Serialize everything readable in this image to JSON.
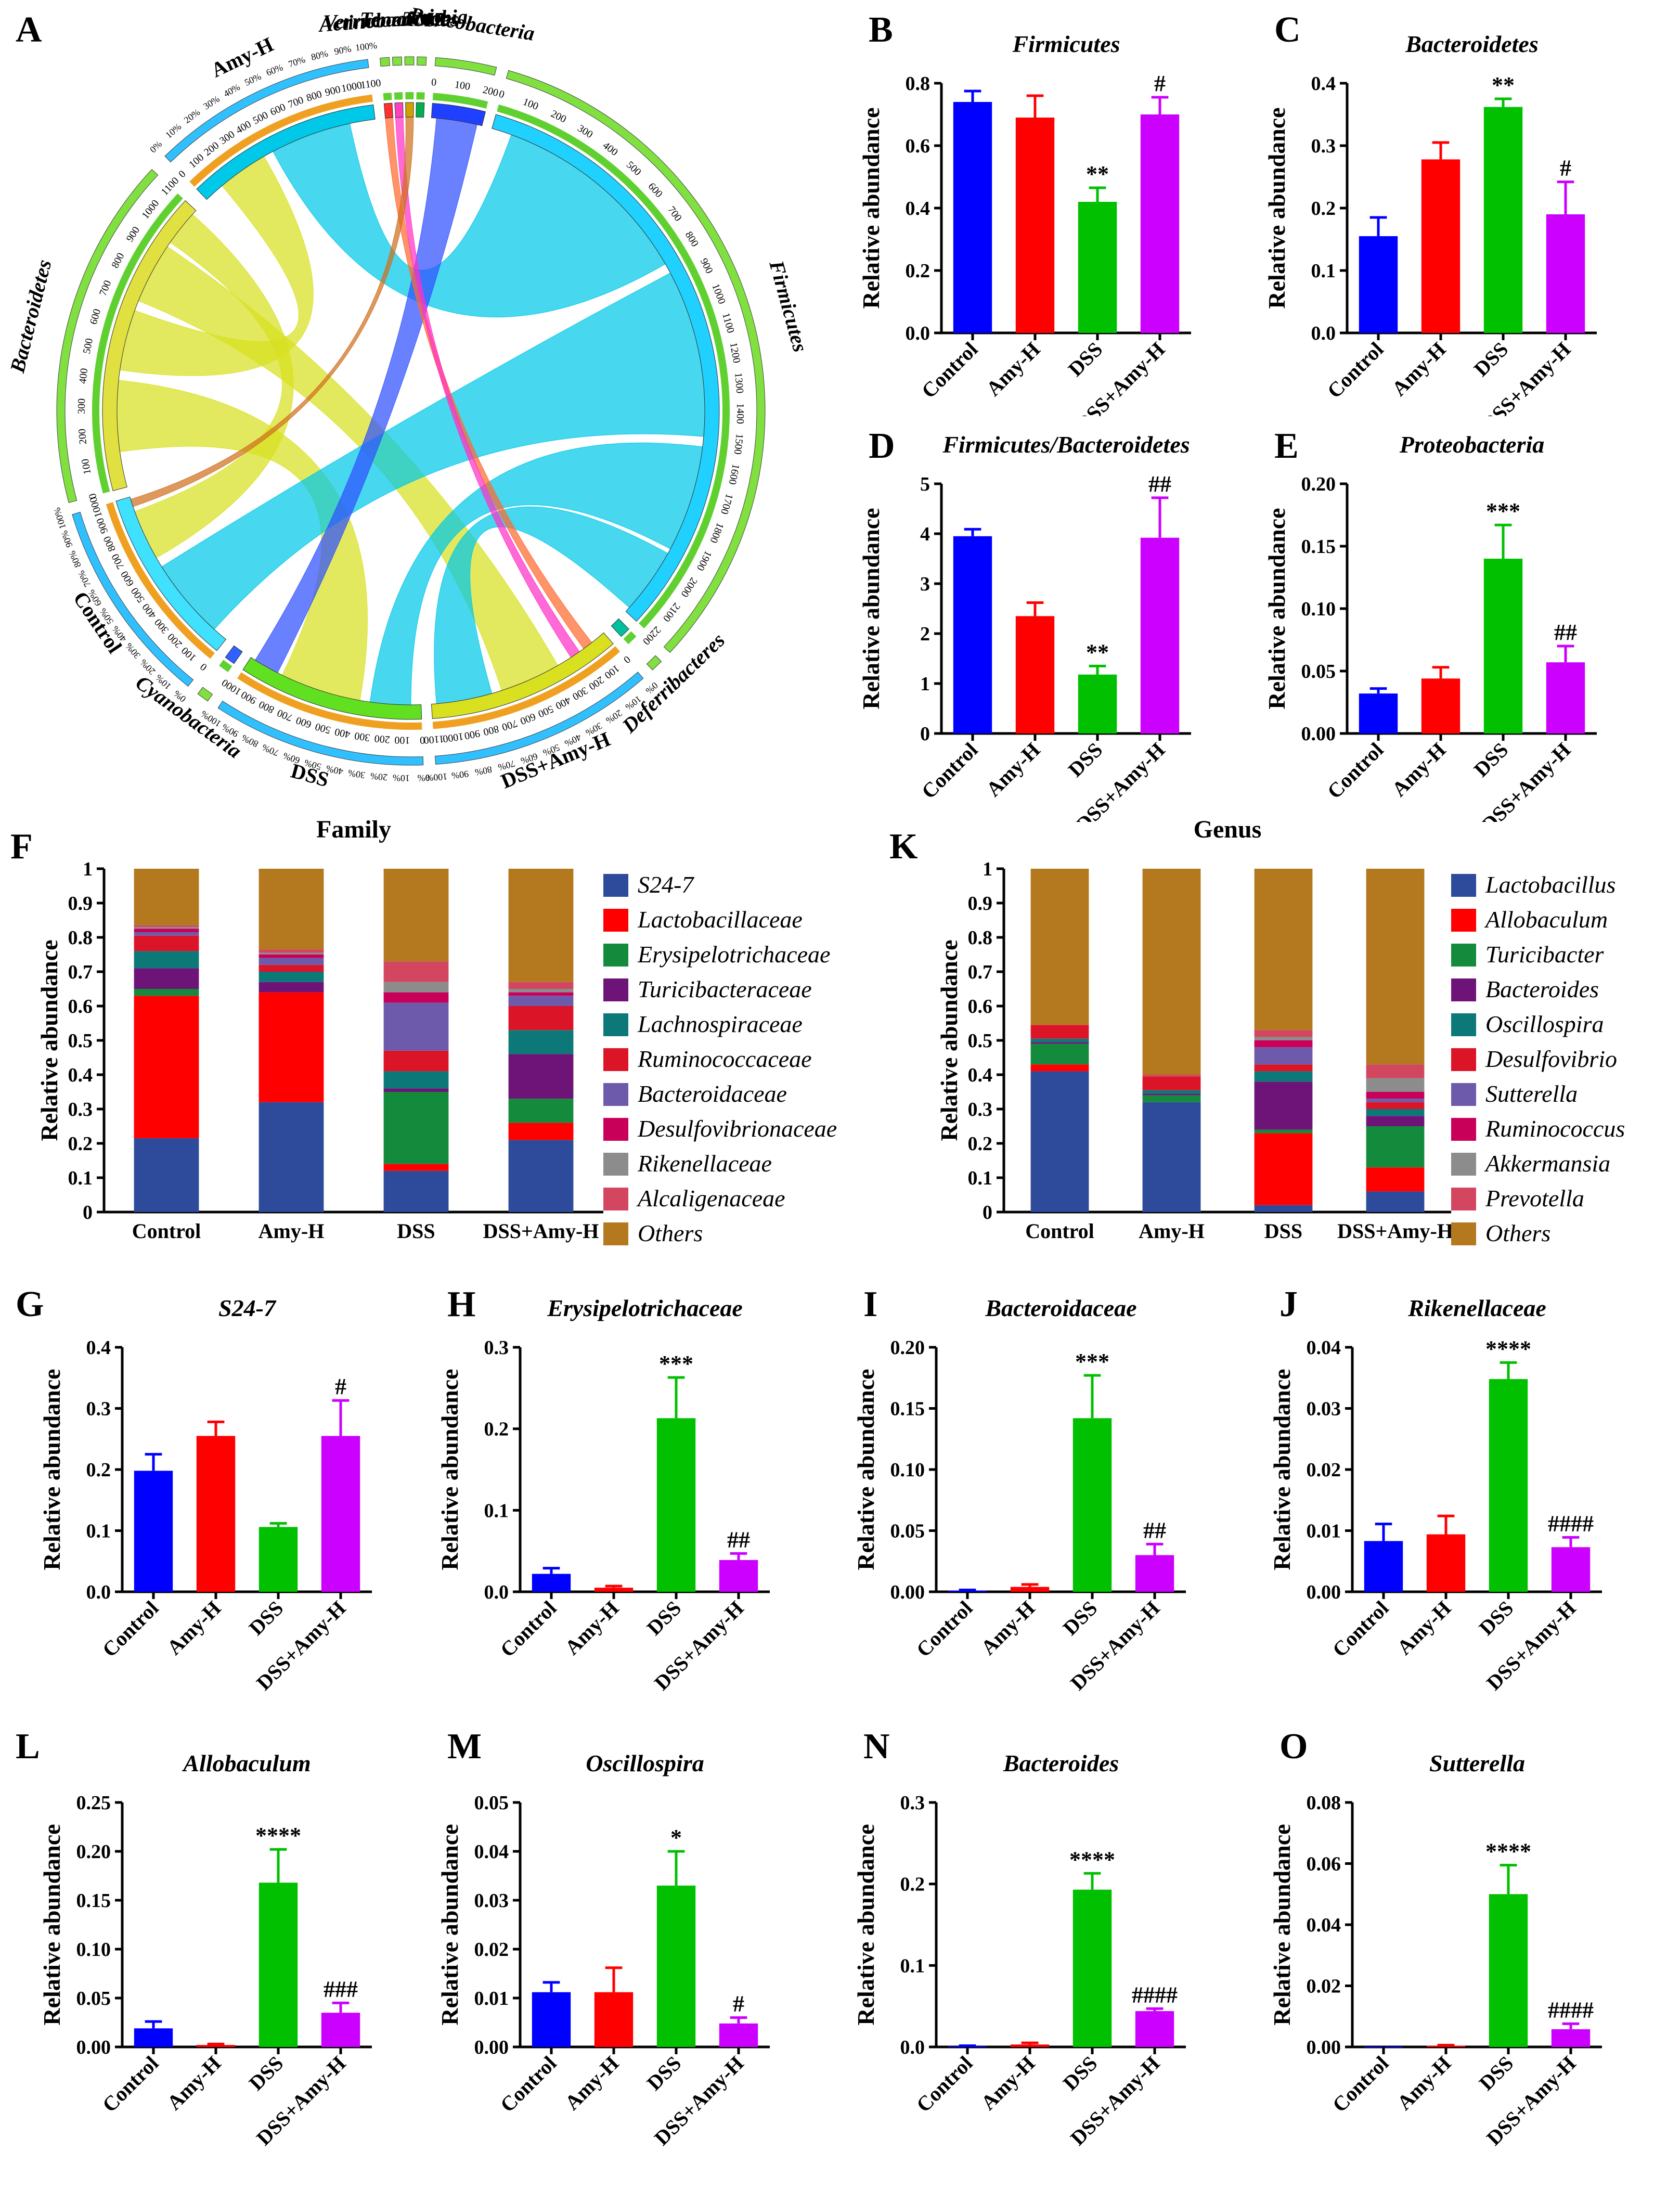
{
  "colors": {
    "Control": "#0000ff",
    "Amy-H": "#ff0000",
    "DSS": "#00c000",
    "DSS+Amy-H": "#cc00ff"
  },
  "groups": [
    "Control",
    "Amy-H",
    "DSS",
    "DSS+Amy-H"
  ],
  "ylabel": "Relative abundance",
  "chart_data": [
    {
      "id": "A",
      "type": "chord",
      "label": "A",
      "sectors": [
        {
          "name": "Amy-H",
          "kind": "sample",
          "color": "#00c8e8",
          "scale": [
            "0",
            "100",
            "200",
            "300",
            "400",
            "500",
            "600",
            "700",
            "800",
            "900",
            "1000",
            "1100"
          ]
        },
        {
          "name": "Actinobacteria",
          "kind": "taxon",
          "color": "#ff3030"
        },
        {
          "name": "Verrucomicrobia",
          "kind": "taxon",
          "color": "#ff40c0"
        },
        {
          "name": "Tenericutes",
          "kind": "taxon",
          "color": "#d0a000"
        },
        {
          "name": "TM7",
          "kind": "taxon",
          "color": "#00b050"
        },
        {
          "name": "Proteobacteria",
          "kind": "taxon",
          "color": "#2040ff",
          "scale": [
            "0",
            "100",
            "200"
          ]
        },
        {
          "name": "Firmicutes",
          "kind": "taxon",
          "color": "#20d0ff",
          "scale": [
            "0",
            "100",
            "200",
            "300",
            "400",
            "500",
            "600",
            "700",
            "800",
            "900",
            "1000",
            "1100",
            "1200",
            "1300",
            "1400",
            "1500",
            "1600",
            "1700",
            "1800",
            "1900",
            "2000",
            "2100",
            "2200"
          ]
        },
        {
          "name": "Deferribacteres",
          "kind": "taxon",
          "color": "#00c0a0"
        },
        {
          "name": "DSS+Amy-H",
          "kind": "sample",
          "color": "#d8e020",
          "scale": [
            "0",
            "100",
            "200",
            "300",
            "400",
            "500",
            "600",
            "700",
            "800",
            "900",
            "1000",
            "1100"
          ]
        },
        {
          "name": "DSS",
          "kind": "sample",
          "color": "#60e020",
          "scale": [
            "0",
            "100",
            "200",
            "300",
            "400",
            "500",
            "600",
            "700",
            "800",
            "900",
            "1000"
          ]
        },
        {
          "name": "Cyanobacteria",
          "kind": "taxon",
          "color": "#3060ff"
        },
        {
          "name": "Control",
          "kind": "sample",
          "color": "#40e0ff",
          "scale": [
            "0",
            "100",
            "200",
            "300",
            "400",
            "500",
            "600",
            "700",
            "800",
            "900",
            "1000"
          ]
        },
        {
          "name": "Bacteroidetes",
          "kind": "taxon",
          "color": "#e0e040",
          "scale": [
            "0",
            "100",
            "200",
            "300",
            "400",
            "500",
            "600",
            "700",
            "800",
            "900",
            "1000",
            "1100"
          ]
        }
      ],
      "percent_ticks": [
        "0%",
        "10%",
        "20%",
        "30%",
        "40%",
        "50%",
        "60%",
        "70%",
        "80%",
        "90%",
        "100%"
      ]
    },
    {
      "id": "B",
      "type": "bar",
      "label": "B",
      "title": "Firmicutes",
      "italic": true,
      "ylabel": "Relative abundance",
      "ylim": [
        0,
        0.8
      ],
      "yticks": [
        "0.0",
        "0.2",
        "0.4",
        "0.6",
        "0.8"
      ],
      "tickvals": [
        0,
        0.2,
        0.4,
        0.6,
        0.8
      ],
      "categories": [
        "Control",
        "Amy-H",
        "DSS",
        "DSS+Amy-H"
      ],
      "values": [
        0.74,
        0.69,
        0.42,
        0.7
      ],
      "errors": [
        0.035,
        0.07,
        0.045,
        0.055
      ],
      "annotations": [
        "",
        "",
        "**",
        "#"
      ]
    },
    {
      "id": "C",
      "type": "bar",
      "label": "C",
      "title": "Bacteroidetes",
      "italic": true,
      "ylabel": "Relative abundance",
      "ylim": [
        0,
        0.4
      ],
      "yticks": [
        "0.0",
        "0.1",
        "0.2",
        "0.3",
        "0.4"
      ],
      "tickvals": [
        0,
        0.1,
        0.2,
        0.3,
        0.4
      ],
      "categories": [
        "Control",
        "Amy-H",
        "DSS",
        "DSS+Amy-H"
      ],
      "values": [
        0.155,
        0.278,
        0.362,
        0.19
      ],
      "errors": [
        0.03,
        0.027,
        0.013,
        0.052
      ],
      "annotations": [
        "",
        "",
        "**",
        "#"
      ]
    },
    {
      "id": "D",
      "type": "bar",
      "label": "D",
      "title": "Firmicutes/Bacteroidetes",
      "italic": true,
      "ylabel": "Relative abundance",
      "ylim": [
        0,
        5
      ],
      "yticks": [
        "0",
        "1",
        "2",
        "3",
        "4",
        "5"
      ],
      "tickvals": [
        0,
        1,
        2,
        3,
        4,
        5
      ],
      "categories": [
        "Control",
        "Amy-H",
        "DSS",
        "DSS+Amy-H"
      ],
      "values": [
        3.95,
        2.35,
        1.18,
        3.92
      ],
      "errors": [
        0.14,
        0.27,
        0.17,
        0.8
      ],
      "annotations": [
        "",
        "",
        "**",
        "##"
      ]
    },
    {
      "id": "E",
      "type": "bar",
      "label": "E",
      "title": "Proteobacteria",
      "italic": true,
      "ylabel": "Relative abundance",
      "ylim": [
        0,
        0.2
      ],
      "yticks": [
        "0.00",
        "0.05",
        "0.10",
        "0.15",
        "0.20"
      ],
      "tickvals": [
        0,
        0.05,
        0.1,
        0.15,
        0.2
      ],
      "categories": [
        "Control",
        "Amy-H",
        "DSS",
        "DSS+Amy-H"
      ],
      "values": [
        0.032,
        0.044,
        0.14,
        0.057
      ],
      "errors": [
        0.004,
        0.009,
        0.027,
        0.013
      ],
      "annotations": [
        "",
        "",
        "***",
        "##"
      ]
    },
    {
      "id": "F",
      "type": "stacked-bar",
      "label": "F",
      "title": "Family",
      "ylabel": "Relative abundance",
      "ylim": [
        0,
        1
      ],
      "yticks": [
        "0",
        "0.1",
        "0.2",
        "0.3",
        "0.4",
        "0.5",
        "0.6",
        "0.7",
        "0.8",
        "0.9",
        "1"
      ],
      "categories": [
        "Control",
        "Amy-H",
        "DSS",
        "DSS+Amy-H"
      ],
      "series": [
        {
          "name": "S24-7",
          "color": "#2e4a9a",
          "values": [
            0.215,
            0.32,
            0.12,
            0.21
          ]
        },
        {
          "name": "Lactobacillaceae",
          "color": "#ff0000",
          "values": [
            0.415,
            0.32,
            0.02,
            0.05
          ]
        },
        {
          "name": "Erysipelotrichaceae",
          "color": "#148a3c",
          "values": [
            0.02,
            0.0,
            0.21,
            0.07
          ]
        },
        {
          "name": "Turicibacteraceae",
          "color": "#6e1478",
          "values": [
            0.06,
            0.03,
            0.01,
            0.13
          ]
        },
        {
          "name": "Lachnospiraceae",
          "color": "#0c7878",
          "values": [
            0.05,
            0.03,
            0.05,
            0.07
          ]
        },
        {
          "name": "Ruminococcaceae",
          "color": "#dc1428",
          "values": [
            0.045,
            0.02,
            0.06,
            0.07
          ]
        },
        {
          "name": "Bacteroidaceae",
          "color": "#6e5aaa",
          "values": [
            0.01,
            0.02,
            0.14,
            0.03
          ]
        },
        {
          "name": "Desulfovibrionaceae",
          "color": "#c8005a",
          "values": [
            0.01,
            0.01,
            0.03,
            0.01
          ]
        },
        {
          "name": "Rikenellaceae",
          "color": "#8c8c8c",
          "values": [
            0.005,
            0.005,
            0.03,
            0.01
          ]
        },
        {
          "name": "Alcaligenaceae",
          "color": "#d24660",
          "values": [
            0.005,
            0.01,
            0.06,
            0.02
          ]
        },
        {
          "name": "Others",
          "color": "#b4781e",
          "values": [
            0.165,
            0.235,
            0.27,
            0.33
          ]
        }
      ]
    },
    {
      "id": "K",
      "type": "stacked-bar",
      "label": "K",
      "title": "Genus",
      "ylabel": "Relative abundance",
      "ylim": [
        0,
        1
      ],
      "yticks": [
        "0",
        "0.1",
        "0.2",
        "0.3",
        "0.4",
        "0.5",
        "0.6",
        "0.7",
        "0.8",
        "0.9",
        "1"
      ],
      "categories": [
        "Control",
        "Amy-H",
        "DSS",
        "DSS+Amy-H"
      ],
      "series": [
        {
          "name": "Lactobacillus",
          "color": "#2e4a9a",
          "values": [
            0.41,
            0.32,
            0.02,
            0.06
          ]
        },
        {
          "name": "Allobaculum",
          "color": "#ff0000",
          "values": [
            0.02,
            0.0,
            0.21,
            0.07
          ]
        },
        {
          "name": "Turicibacter",
          "color": "#148a3c",
          "values": [
            0.06,
            0.02,
            0.01,
            0.12
          ]
        },
        {
          "name": "Bacteroides",
          "color": "#6e1478",
          "values": [
            0.005,
            0.005,
            0.14,
            0.03
          ]
        },
        {
          "name": "Oscillospira",
          "color": "#0c7878",
          "values": [
            0.01,
            0.01,
            0.03,
            0.02
          ]
        },
        {
          "name": "Desulfovibrio",
          "color": "#dc1428",
          "values": [
            0.04,
            0.04,
            0.02,
            0.02
          ]
        },
        {
          "name": "Sutterella",
          "color": "#6e5aaa",
          "values": [
            0.0,
            0.0,
            0.05,
            0.01
          ]
        },
        {
          "name": "Ruminococcus",
          "color": "#c8005a",
          "values": [
            0.0,
            0.0,
            0.02,
            0.02
          ]
        },
        {
          "name": "Akkermansia",
          "color": "#8c8c8c",
          "values": [
            0.0,
            0.0,
            0.01,
            0.04
          ]
        },
        {
          "name": "Prevotella",
          "color": "#d24660",
          "values": [
            0.0,
            0.005,
            0.02,
            0.04
          ]
        },
        {
          "name": "Others",
          "color": "#b4781e",
          "values": [
            0.455,
            0.6,
            0.47,
            0.57
          ]
        }
      ]
    },
    {
      "id": "G",
      "type": "bar",
      "label": "G",
      "title": "S24-7",
      "italic": true,
      "ylabel": "Relative abundance",
      "ylim": [
        0,
        0.4
      ],
      "yticks": [
        "0.0",
        "0.1",
        "0.2",
        "0.3",
        "0.4"
      ],
      "tickvals": [
        0,
        0.1,
        0.2,
        0.3,
        0.4
      ],
      "categories": [
        "Control",
        "Amy-H",
        "DSS",
        "DSS+Amy-H"
      ],
      "values": [
        0.198,
        0.255,
        0.106,
        0.255
      ],
      "errors": [
        0.027,
        0.023,
        0.006,
        0.058
      ],
      "annotations": [
        "",
        "",
        "",
        "#"
      ]
    },
    {
      "id": "H",
      "type": "bar",
      "label": "H",
      "title": "Erysipelotrichaceae",
      "italic": true,
      "ylabel": "Relative abundance",
      "ylim": [
        0,
        0.3
      ],
      "yticks": [
        "0.0",
        "0.1",
        "0.2",
        "0.3"
      ],
      "tickvals": [
        0,
        0.1,
        0.2,
        0.3
      ],
      "categories": [
        "Control",
        "Amy-H",
        "DSS",
        "DSS+Amy-H"
      ],
      "values": [
        0.022,
        0.005,
        0.213,
        0.039
      ],
      "errors": [
        0.007,
        0.002,
        0.05,
        0.008
      ],
      "annotations": [
        "",
        "",
        "***",
        "##"
      ]
    },
    {
      "id": "I",
      "type": "bar",
      "label": "I",
      "title": "Bacteroidaceae",
      "italic": true,
      "ylabel": "Relative abundance",
      "ylim": [
        0,
        0.2
      ],
      "yticks": [
        "0.00",
        "0.05",
        "0.10",
        "0.15",
        "0.20"
      ],
      "tickvals": [
        0,
        0.05,
        0.1,
        0.15,
        0.2
      ],
      "categories": [
        "Control",
        "Amy-H",
        "DSS",
        "DSS+Amy-H"
      ],
      "values": [
        0.001,
        0.004,
        0.142,
        0.03
      ],
      "errors": [
        0.0005,
        0.002,
        0.035,
        0.009
      ],
      "annotations": [
        "",
        "",
        "***",
        "##"
      ]
    },
    {
      "id": "J",
      "type": "bar",
      "label": "J",
      "title": "Rikenellaceae",
      "italic": true,
      "ylabel": "Relative abundance",
      "ylim": [
        0,
        0.04
      ],
      "yticks": [
        "0.00",
        "0.01",
        "0.02",
        "0.03",
        "0.04"
      ],
      "tickvals": [
        0,
        0.01,
        0.02,
        0.03,
        0.04
      ],
      "categories": [
        "Control",
        "Amy-H",
        "DSS",
        "DSS+Amy-H"
      ],
      "values": [
        0.0083,
        0.0094,
        0.0348,
        0.0073
      ],
      "errors": [
        0.0028,
        0.003,
        0.0027,
        0.0016
      ],
      "annotations": [
        "",
        "",
        "****",
        "####"
      ]
    },
    {
      "id": "L",
      "type": "bar",
      "label": "L",
      "title": "Allobaculum",
      "italic": true,
      "ylabel": "Relative abundance",
      "ylim": [
        0,
        0.25
      ],
      "yticks": [
        "0.00",
        "0.05",
        "0.10",
        "0.15",
        "0.20",
        "0.25"
      ],
      "tickvals": [
        0,
        0.05,
        0.1,
        0.15,
        0.2,
        0.25
      ],
      "categories": [
        "Control",
        "Amy-H",
        "DSS",
        "DSS+Amy-H"
      ],
      "values": [
        0.019,
        0.002,
        0.168,
        0.035
      ],
      "errors": [
        0.007,
        0.001,
        0.034,
        0.01
      ],
      "annotations": [
        "",
        "",
        "****",
        "###"
      ]
    },
    {
      "id": "M",
      "type": "bar",
      "label": "M",
      "title": "Oscillospira",
      "italic": true,
      "ylabel": "Relative abundance",
      "ylim": [
        0,
        0.05
      ],
      "yticks": [
        "0.00",
        "0.01",
        "0.02",
        "0.03",
        "0.04",
        "0.05"
      ],
      "tickvals": [
        0,
        0.01,
        0.02,
        0.03,
        0.04,
        0.05
      ],
      "categories": [
        "Control",
        "Amy-H",
        "DSS",
        "DSS+Amy-H"
      ],
      "values": [
        0.0112,
        0.0112,
        0.033,
        0.0048
      ],
      "errors": [
        0.002,
        0.005,
        0.007,
        0.0012
      ],
      "annotations": [
        "",
        "",
        "*",
        "#"
      ]
    },
    {
      "id": "N",
      "type": "bar",
      "label": "N",
      "title": "Bacteroides",
      "italic": true,
      "ylabel": "Relative abundance",
      "ylim": [
        0,
        0.3
      ],
      "yticks": [
        "0.0",
        "0.1",
        "0.2",
        "0.3"
      ],
      "tickvals": [
        0,
        0.1,
        0.2,
        0.3
      ],
      "categories": [
        "Control",
        "Amy-H",
        "DSS",
        "DSS+Amy-H"
      ],
      "values": [
        0.001,
        0.003,
        0.193,
        0.044
      ],
      "errors": [
        0.0005,
        0.002,
        0.02,
        0.003
      ],
      "annotations": [
        "",
        "",
        "****",
        "####"
      ]
    },
    {
      "id": "O",
      "type": "bar",
      "label": "O",
      "title": "Sutterella",
      "italic": true,
      "ylabel": "Relative abundance",
      "ylim": [
        0,
        0.08
      ],
      "yticks": [
        "0.00",
        "0.02",
        "0.04",
        "0.06",
        "0.08"
      ],
      "tickvals": [
        0,
        0.02,
        0.04,
        0.06,
        0.08
      ],
      "categories": [
        "Control",
        "Amy-H",
        "DSS",
        "DSS+Amy-H"
      ],
      "values": [
        0.0001,
        0.0004,
        0.05,
        0.0058
      ],
      "errors": [
        0.0,
        0.0002,
        0.0095,
        0.0018
      ],
      "annotations": [
        "",
        "",
        "****",
        "####"
      ]
    }
  ]
}
